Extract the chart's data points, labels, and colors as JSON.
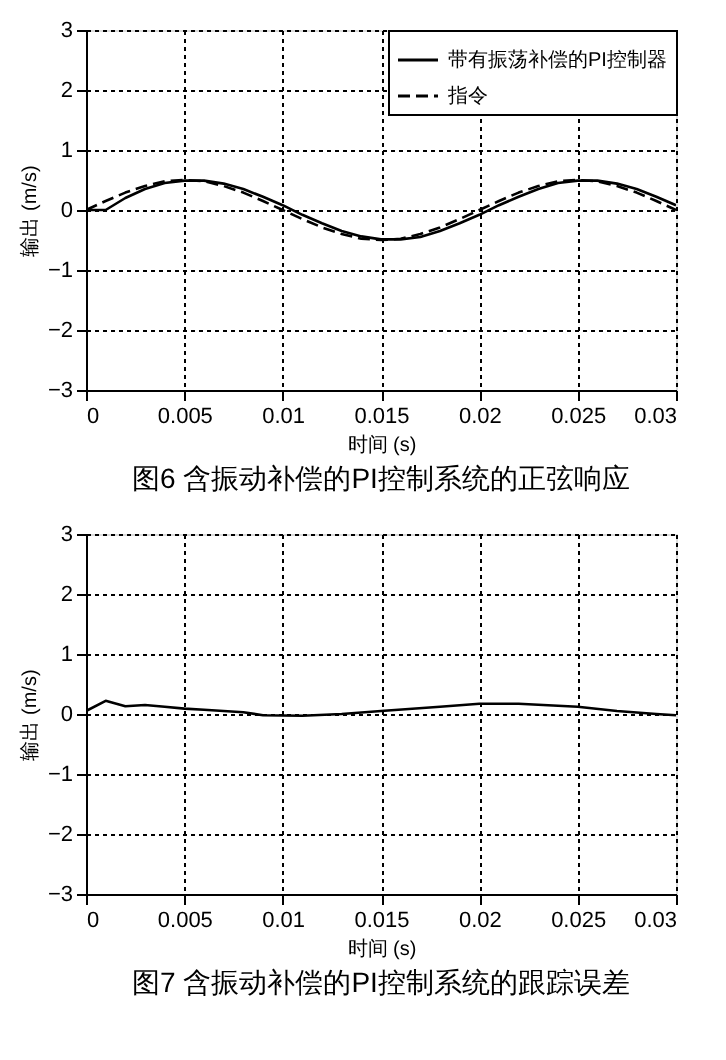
{
  "chart_data": [
    {
      "type": "line",
      "title": "图6 含振动补偿的PI控制系统的正弦响应",
      "xlabel": "时间 (s)",
      "ylabel": "输出 (m/s)",
      "x": [
        0,
        0.001,
        0.002,
        0.003,
        0.004,
        0.005,
        0.006,
        0.007,
        0.008,
        0.009,
        0.01,
        0.011,
        0.012,
        0.013,
        0.014,
        0.015,
        0.016,
        0.017,
        0.018,
        0.019,
        0.02,
        0.021,
        0.022,
        0.023,
        0.024,
        0.025,
        0.026,
        0.027,
        0.028,
        0.029,
        0.03
      ],
      "series": [
        {
          "name": "带有振荡补偿的PI控制器",
          "color": "#000000",
          "line_style": "solid",
          "values": [
            0,
            0,
            0.2,
            0.35,
            0.45,
            0.49,
            0.49,
            0.44,
            0.35,
            0.22,
            0.08,
            -0.08,
            -0.22,
            -0.35,
            -0.44,
            -0.49,
            -0.49,
            -0.45,
            -0.35,
            -0.22,
            -0.08,
            0.08,
            0.22,
            0.35,
            0.45,
            0.49,
            0.49,
            0.44,
            0.35,
            0.22,
            0.08
          ]
        },
        {
          "name": "指令",
          "color": "#000000",
          "line_style": "dashed",
          "values": [
            0,
            0.15,
            0.29,
            0.4,
            0.48,
            0.5,
            0.48,
            0.4,
            0.29,
            0.15,
            0,
            -0.15,
            -0.29,
            -0.4,
            -0.48,
            -0.5,
            -0.48,
            -0.4,
            -0.29,
            -0.15,
            0,
            0.15,
            0.29,
            0.4,
            0.48,
            0.5,
            0.48,
            0.4,
            0.29,
            0.15,
            0
          ]
        }
      ],
      "xlim": [
        0,
        0.03
      ],
      "xticks": [
        0,
        0.005,
        0.01,
        0.015,
        0.02,
        0.025,
        0.03
      ],
      "ylim": [
        -3,
        3
      ],
      "yticks": [
        -3,
        -2,
        -1,
        0,
        1,
        2,
        3
      ],
      "grid": true,
      "legend": "top right"
    },
    {
      "type": "line",
      "title": "图7 含振动补偿的PI控制系统的跟踪误差",
      "xlabel": "时间 (s)",
      "ylabel": "输出 (m/s)",
      "x": [
        0,
        0.001,
        0.002,
        0.003,
        0.004,
        0.005,
        0.006,
        0.008,
        0.009,
        0.011,
        0.013,
        0.015,
        0.018,
        0.02,
        0.022,
        0.025,
        0.027,
        0.029,
        0.03
      ],
      "series": [
        {
          "color": "#000000",
          "line_style": "solid",
          "values": [
            0.05,
            0.22,
            0.13,
            0.15,
            0.12,
            0.09,
            0.07,
            0.03,
            -0.02,
            -0.03,
            0,
            0.05,
            0.12,
            0.17,
            0.17,
            0.12,
            0.05,
            0,
            -0.02
          ]
        }
      ],
      "xlim": [
        0,
        0.03
      ],
      "xticks": [
        0,
        0.005,
        0.01,
        0.015,
        0.02,
        0.025,
        0.03
      ],
      "ylim": [
        -3,
        3
      ],
      "yticks": [
        -3,
        -2,
        -1,
        0,
        1,
        2,
        3
      ],
      "grid": true
    }
  ]
}
